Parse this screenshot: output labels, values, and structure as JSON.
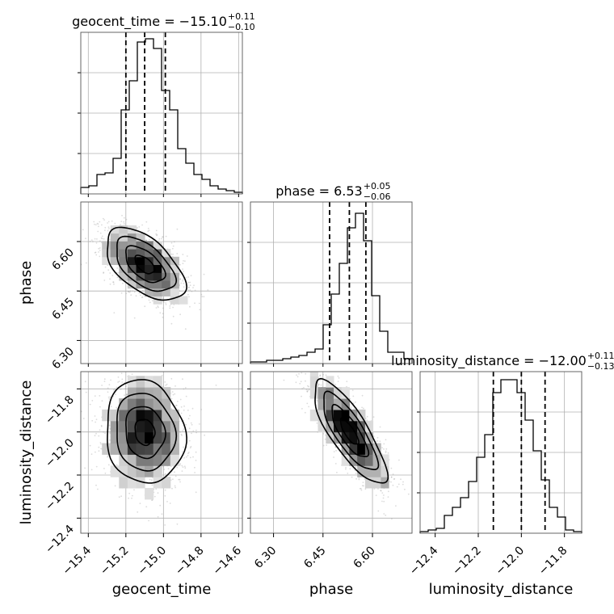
{
  "chart_data": {
    "type": "corner",
    "parameters": [
      {
        "name": "geocent_time",
        "range": [
          -15.44,
          -14.58
        ],
        "ticks": [
          -15.4,
          -15.2,
          -15.0,
          -14.8,
          -14.6
        ],
        "tick_labels": [
          "−15.4",
          "−15.2",
          "−15.0",
          "−14.8",
          "−14.6"
        ],
        "median": -15.1,
        "upper_err": 0.11,
        "lower_err": 0.1,
        "title_main": "geocent_time = −15.10",
        "title_plus": "+0.11",
        "title_minus": "−0.10",
        "histogram": [
          0.04,
          0.05,
          0.12,
          0.13,
          0.22,
          0.52,
          0.7,
          0.94,
          0.96,
          0.9,
          0.64,
          0.52,
          0.28,
          0.19,
          0.12,
          0.09,
          0.05,
          0.03,
          0.02,
          0.01
        ]
      },
      {
        "name": "phase",
        "range": [
          6.23,
          6.72
        ],
        "ticks": [
          6.3,
          6.45,
          6.6
        ],
        "tick_labels": [
          "6.30",
          "6.45",
          "6.60"
        ],
        "median": 6.53,
        "upper_err": 0.05,
        "lower_err": 0.06,
        "title_main": "phase = 6.53",
        "title_plus": "+0.05",
        "title_minus": "−0.06",
        "histogram": [
          0.01,
          0.01,
          0.02,
          0.02,
          0.03,
          0.04,
          0.05,
          0.07,
          0.09,
          0.24,
          0.43,
          0.62,
          0.84,
          0.93,
          0.76,
          0.42,
          0.2,
          0.07,
          0.07,
          0.03
        ]
      },
      {
        "name": "luminosity_distance",
        "range": [
          -12.47,
          -11.72
        ],
        "ticks": [
          -12.4,
          -12.2,
          -12.0,
          -11.8
        ],
        "tick_labels": [
          "−12.4",
          "−12.2",
          "−12.0",
          "−11.8"
        ],
        "median": -12.0,
        "upper_err": 0.11,
        "lower_err": 0.13,
        "title_main": "luminosity_distance = −12.00",
        "title_plus": "+0.11",
        "title_minus": "−0.13",
        "histogram": [
          0.01,
          0.02,
          0.03,
          0.11,
          0.16,
          0.22,
          0.32,
          0.47,
          0.61,
          0.87,
          0.95,
          0.95,
          0.87,
          0.7,
          0.51,
          0.33,
          0.16,
          0.1,
          0.02,
          0.01
        ]
      }
    ],
    "correlations": {
      "1_0": -0.55,
      "2_0": -0.1,
      "2_1": -0.8
    },
    "grid": true,
    "quantile_lines": "dashed"
  }
}
